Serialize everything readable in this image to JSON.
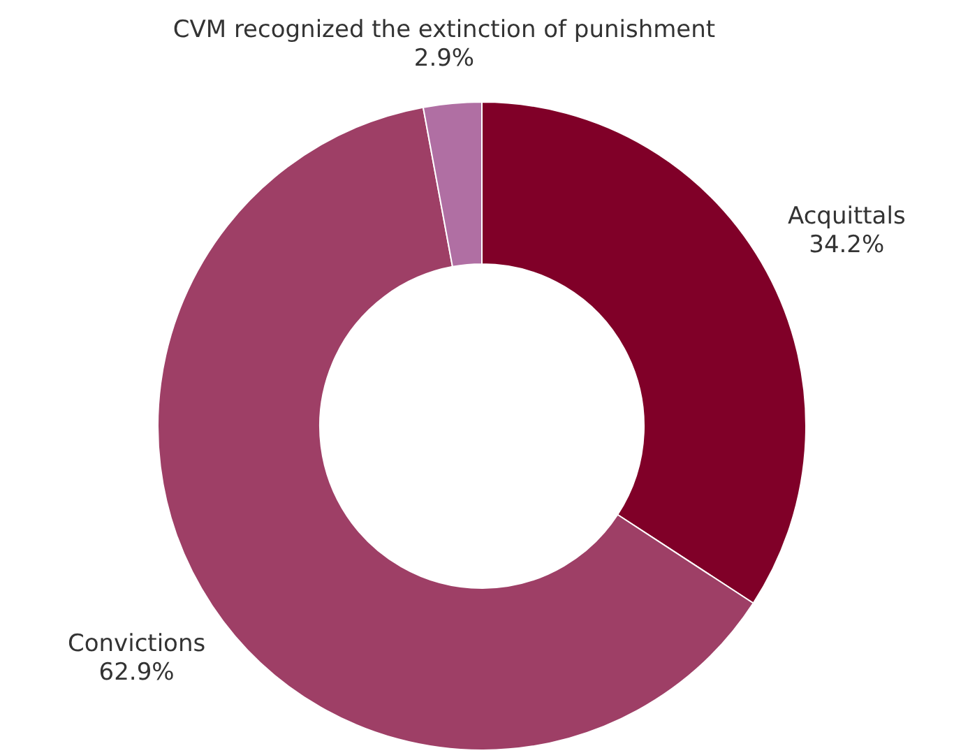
{
  "chart_data": {
    "type": "donut",
    "categories": [
      "Acquittals",
      "Convictions",
      "CVM recognized the extinction of punishment"
    ],
    "values": [
      34.2,
      62.9,
      2.9
    ],
    "value_labels": [
      "34.2%",
      "62.9%",
      "2.9%"
    ],
    "colors": [
      "#800028",
      "#9e3f66",
      "#b06fa3"
    ]
  }
}
